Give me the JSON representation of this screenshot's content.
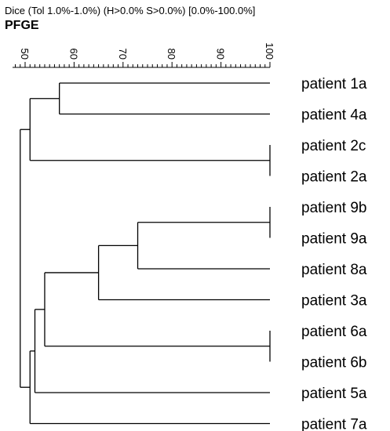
{
  "header": {
    "subtitle": "Dice (Tol 1.0%-1.0%) (H>0.0% S>0.0%) [0.0%-100.0%]",
    "title": "PFGE"
  },
  "scale": {
    "min": 50,
    "max": 100,
    "labels": [
      "50",
      "60",
      "70",
      "80",
      "90",
      "100"
    ]
  },
  "leaves": [
    "patient 1a",
    "patient 4a",
    "patient 2c",
    "patient 2a",
    "patient 9b",
    "patient 9a",
    "patient 8a",
    "patient 3a",
    "patient 6a",
    "patient 6b",
    "patient 5a",
    "patient 7a"
  ],
  "clusters": [
    {
      "id": "c1",
      "left": 0,
      "right": 1,
      "similarity": 57
    },
    {
      "id": "c2",
      "left": 2,
      "right": 3,
      "similarity": 100
    },
    {
      "id": "c3",
      "left": "c1",
      "right": "c2",
      "similarity": 51
    },
    {
      "id": "c4",
      "left": 4,
      "right": 5,
      "similarity": 100
    },
    {
      "id": "c5",
      "left": "c4",
      "right": 6,
      "similarity": 73
    },
    {
      "id": "c6",
      "left": "c5",
      "right": 7,
      "similarity": 65
    },
    {
      "id": "c7",
      "left": 8,
      "right": 9,
      "similarity": 100
    },
    {
      "id": "c8",
      "left": "c6",
      "right": "c7",
      "similarity": 54
    },
    {
      "id": "c9",
      "left": "c8",
      "right": 10,
      "similarity": 52
    },
    {
      "id": "c10",
      "left": "c9",
      "right": 11,
      "similarity": 51
    },
    {
      "id": "c11",
      "left": "c3",
      "right": "c10",
      "similarity": 49
    }
  ]
}
